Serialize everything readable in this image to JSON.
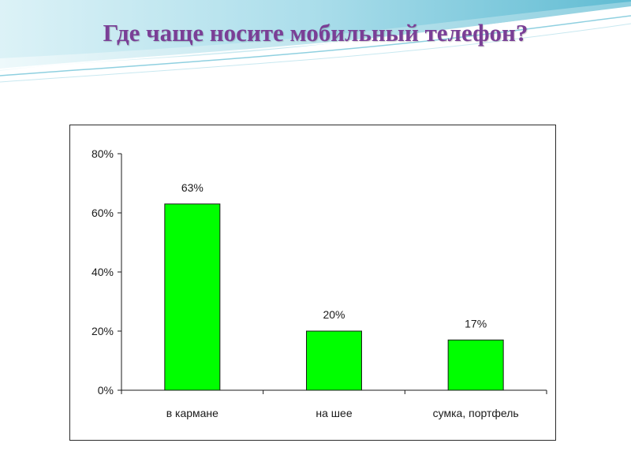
{
  "slide": {
    "title": "Где чаще носите мобильный телефон?"
  },
  "colors": {
    "title": "#7a3f96",
    "bar_fill": "#00ff00",
    "bar_stroke": "#1a1a1a",
    "axis": "#1a1a1a",
    "wave_light": "#bfe6f0",
    "wave_mid": "#8fd0e0",
    "wave_dark": "#4fb3cc"
  },
  "chart_data": {
    "type": "bar",
    "title": "",
    "xlabel": "",
    "ylabel": "",
    "categories": [
      "в кармане",
      "на шее",
      "сумка, портфель"
    ],
    "values": [
      63,
      20,
      17
    ],
    "value_labels": [
      "63%",
      "20%",
      "17%"
    ],
    "ylim": [
      0,
      80
    ],
    "yticks": [
      0,
      20,
      40,
      60,
      80
    ],
    "ytick_labels": [
      "0%",
      "20%",
      "40%",
      "60%",
      "80%"
    ],
    "grid": false,
    "legend": "none"
  }
}
